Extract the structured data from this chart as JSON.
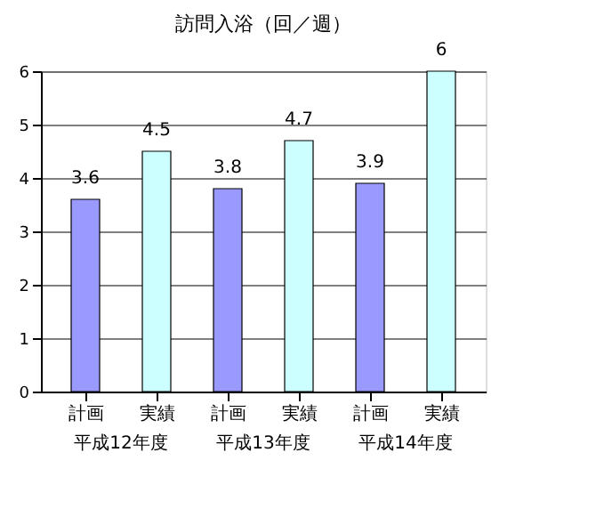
{
  "chart_data": {
    "type": "bar",
    "title": "訪問入浴（回／週）",
    "categories": [
      "計画",
      "実績",
      "計画",
      "実績",
      "計画",
      "実績"
    ],
    "values": [
      3.6,
      4.5,
      3.8,
      4.7,
      3.9,
      6
    ],
    "colors": [
      "#9999ff",
      "#ccffff",
      "#9999ff",
      "#ccffff",
      "#9999ff",
      "#ccffff"
    ],
    "ylim": [
      0,
      6
    ],
    "yticks": [
      0,
      1,
      2,
      3,
      4,
      5,
      6
    ],
    "grid": "y",
    "data_labels": true,
    "annotations": [
      "平成12年度",
      "平成13年度",
      "平成14年度"
    ]
  }
}
